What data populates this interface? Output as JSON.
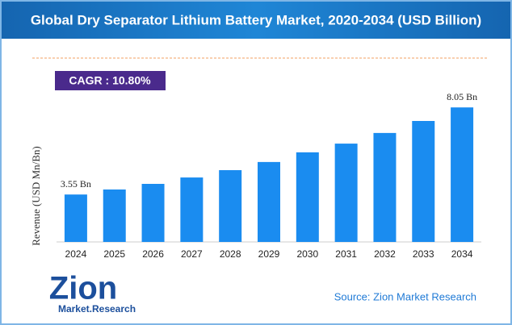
{
  "chart_data": {
    "type": "bar",
    "title": "Global Dry Separator Lithium Battery Market, 2020-2034 (USD Billion)",
    "cagr": "CAGR : 10.80%",
    "y_label": "Revenue (USD Mn/Bn)",
    "categories": [
      "2024",
      "2025",
      "2026",
      "2027",
      "2028",
      "2029",
      "2030",
      "2031",
      "2032",
      "2033",
      "2034"
    ],
    "values": [
      3.55,
      3.81,
      4.1,
      4.43,
      4.81,
      5.23,
      5.73,
      6.18,
      6.73,
      7.35,
      8.05
    ],
    "value_labels": [
      "3.55 Bn",
      null,
      null,
      null,
      null,
      null,
      null,
      null,
      null,
      null,
      "8.05 Bn"
    ],
    "color": "#1a8cf0",
    "ylim": [
      1.1,
      8.6
    ],
    "source": "Source: Zion Market Research",
    "logo": {
      "name": "Zion",
      "tagline": "Market.Research"
    }
  }
}
